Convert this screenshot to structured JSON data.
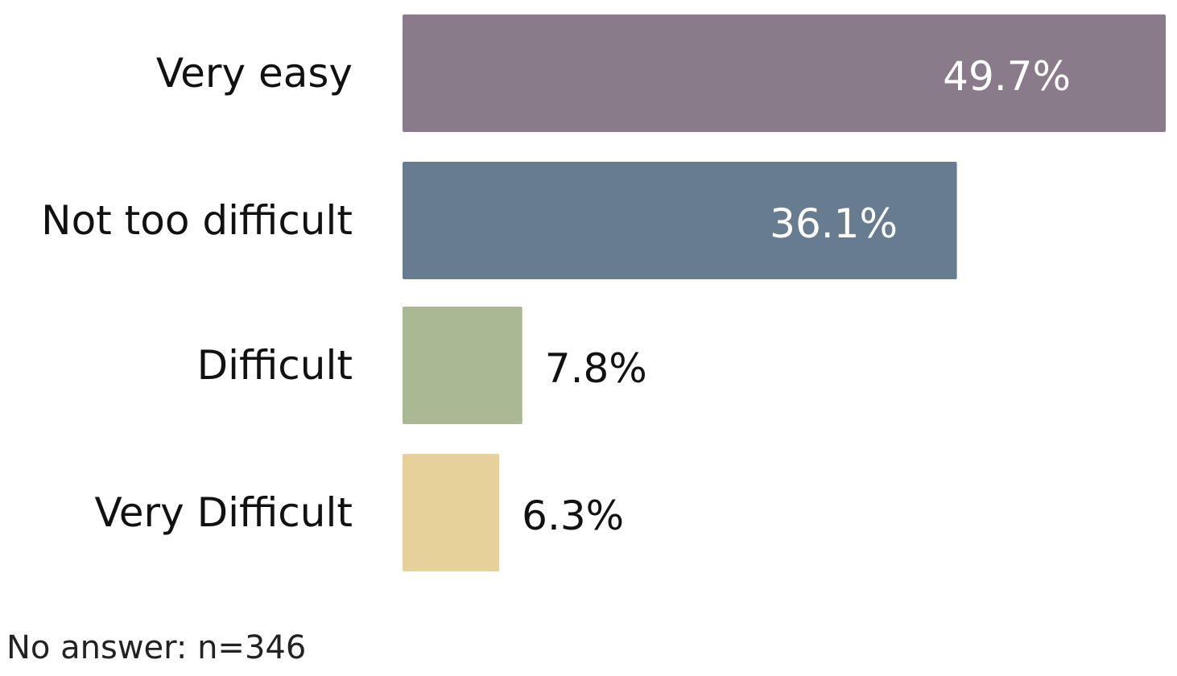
{
  "chart_data": {
    "type": "bar",
    "orientation": "horizontal",
    "categories": [
      "Very easy",
      "Not too difficult",
      "Difficult",
      "Very Difficult"
    ],
    "values": [
      49.7,
      36.1,
      7.8,
      6.3
    ],
    "value_labels": [
      "49.7%",
      "36.1%",
      "7.8%",
      "6.3%"
    ],
    "colors": [
      "#8a7b8a",
      "#677c8f",
      "#aab994",
      "#e6d19b"
    ],
    "value_label_colors": [
      "#ffffff",
      "#ffffff",
      "#111111",
      "#111111"
    ],
    "value_label_placement": [
      "inside",
      "inside",
      "outside",
      "outside"
    ],
    "xlim": [
      0,
      49.7
    ],
    "grid": false,
    "legend": "none"
  },
  "footnote": "No answer: n=346"
}
